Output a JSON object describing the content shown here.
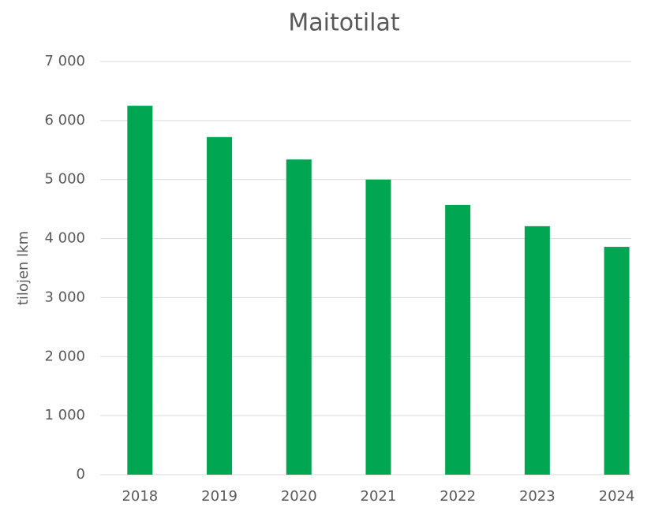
{
  "chart_data": {
    "type": "bar",
    "title": "Maitotilat",
    "ylabel": "tilojen lkm",
    "categories": [
      "2018",
      "2019",
      "2020",
      "2021",
      "2022",
      "2023",
      "2024"
    ],
    "values": [
      6250,
      5720,
      5340,
      5000,
      4570,
      4210,
      3860
    ],
    "color": "#00a651",
    "ylim": [
      0,
      7000
    ],
    "yticks": [
      0,
      {
        "value": 1000,
        "label": "1 000"
      },
      {
        "value": 2000,
        "label": "2 000"
      },
      {
        "value": 3000,
        "label": "3 000"
      },
      {
        "value": 4000,
        "label": "4 000"
      },
      {
        "value": 5000,
        "label": "5 000"
      },
      {
        "value": 6000,
        "label": "6 000"
      },
      {
        "value": 7000,
        "label": "7 000"
      }
    ],
    "grid": true
  }
}
